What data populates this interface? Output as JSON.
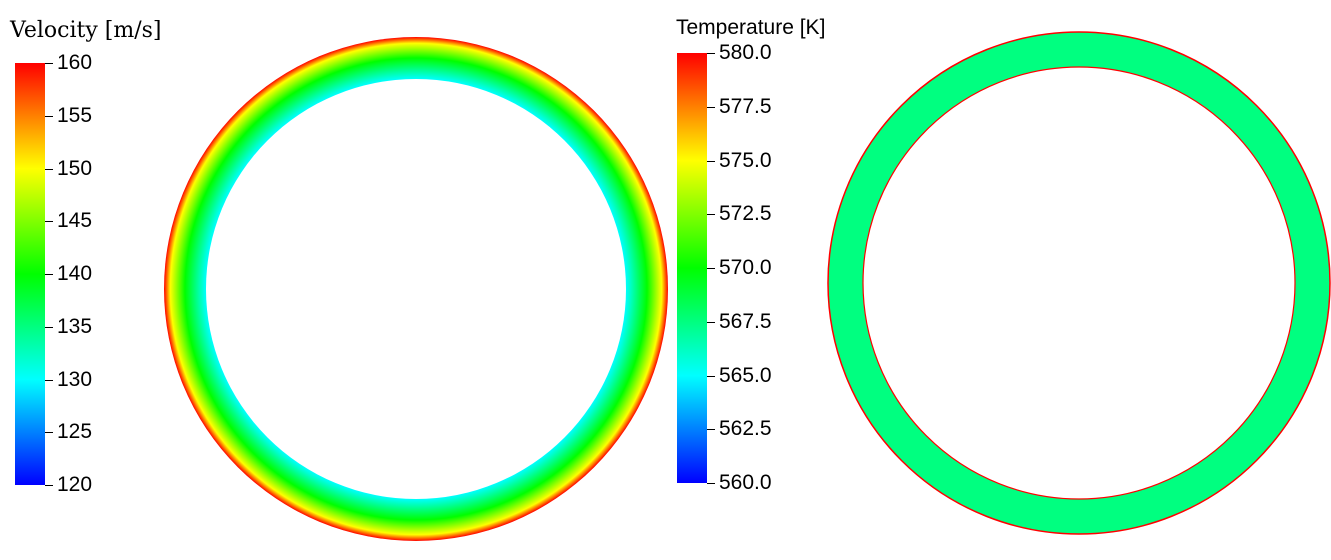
{
  "chart_data": [
    {
      "type": "heatmap",
      "title": "Velocity [m/s]",
      "colorbar": {
        "min": 120,
        "max": 160,
        "ticks": [
          "160",
          "155",
          "150",
          "145",
          "140",
          "135",
          "130",
          "125",
          "120"
        ],
        "colormap": [
          "#0000ff",
          "#0080ff",
          "#00ffff",
          "#00ff80",
          "#00ff00",
          "#80ff00",
          "#ffff00",
          "#ff8000",
          "#ff0000"
        ]
      },
      "field": {
        "shape": "annulus",
        "description_levels": [
          {
            "region": "outer wall",
            "value": 160
          },
          {
            "region": "near outer wall",
            "value": 152
          },
          {
            "region": "mid gap",
            "value": 140
          },
          {
            "region": "inner wall",
            "value": 131
          }
        ]
      }
    },
    {
      "type": "heatmap",
      "title": "Temperature [K]",
      "colorbar": {
        "min": 560.0,
        "max": 580.0,
        "ticks": [
          "580.0",
          "577.5",
          "575.0",
          "572.5",
          "570.0",
          "567.5",
          "565.0",
          "562.5",
          "560.0"
        ],
        "colormap": [
          "#0000ff",
          "#0080ff",
          "#00ffff",
          "#00ff80",
          "#00ff00",
          "#80ff00",
          "#ffff00",
          "#ff8000",
          "#ff0000"
        ]
      },
      "field": {
        "shape": "annulus",
        "description_levels": [
          {
            "region": "outer wall",
            "value": 580.0
          },
          {
            "region": "bulk",
            "value": 568.0
          },
          {
            "region": "inner wall",
            "value": 580.0
          }
        ]
      }
    }
  ]
}
